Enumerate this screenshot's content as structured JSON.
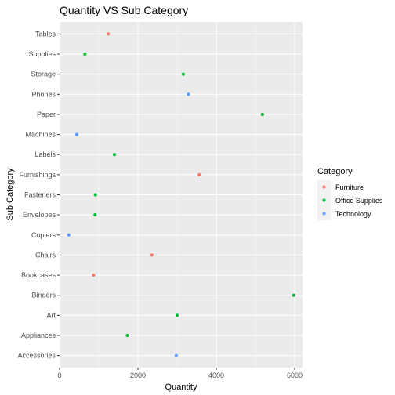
{
  "chart_data": {
    "type": "scatter",
    "title": "Quantity VS Sub Category",
    "xlabel": "Quantity",
    "ylabel": "Sub Category",
    "xlim": [
      0,
      6200
    ],
    "xticks": [
      0,
      2000,
      4000,
      6000
    ],
    "xtick_labels": [
      "0",
      "2000",
      "4000",
      "6000"
    ],
    "categories": [
      "Accessories",
      "Appliances",
      "Art",
      "Binders",
      "Bookcases",
      "Chairs",
      "Copiers",
      "Envelopes",
      "Fasteners",
      "Furnishings",
      "Labels",
      "Machines",
      "Paper",
      "Phones",
      "Storage",
      "Supplies",
      "Tables"
    ],
    "grid": true,
    "legend_position": "right",
    "legend_title": "Category",
    "series": [
      {
        "name": "Furniture",
        "color": "#F8766D",
        "points": [
          {
            "category": "Tables",
            "x": 1241
          },
          {
            "category": "Furnishings",
            "x": 3563
          },
          {
            "category": "Chairs",
            "x": 2356
          },
          {
            "category": "Bookcases",
            "x": 868
          }
        ]
      },
      {
        "name": "Office Supplies",
        "color": "#00BA38",
        "points": [
          {
            "category": "Supplies",
            "x": 647
          },
          {
            "category": "Storage",
            "x": 3158
          },
          {
            "category": "Paper",
            "x": 5178
          },
          {
            "category": "Labels",
            "x": 1400
          },
          {
            "category": "Fasteners",
            "x": 914
          },
          {
            "category": "Envelopes",
            "x": 906
          },
          {
            "category": "Binders",
            "x": 5974
          },
          {
            "category": "Art",
            "x": 3000
          },
          {
            "category": "Appliances",
            "x": 1729
          }
        ]
      },
      {
        "name": "Technology",
        "color": "#619CFF",
        "points": [
          {
            "category": "Phones",
            "x": 3289
          },
          {
            "category": "Machines",
            "x": 440
          },
          {
            "category": "Copiers",
            "x": 234
          },
          {
            "category": "Accessories",
            "x": 2976
          }
        ]
      }
    ]
  },
  "style": {
    "panel_bg": "#EBEBEB",
    "grid_major": "#FFFFFF",
    "legend_key_bg": "#F2F2F2"
  }
}
